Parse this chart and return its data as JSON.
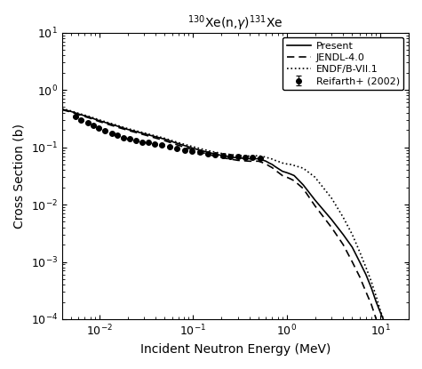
{
  "title": "$^{130}$Xe(n,$\\gamma$)$^{131}$Xe",
  "xlabel": "Incident Neutron Energy (MeV)",
  "ylabel": "Cross Section (b)",
  "xlim": [
    0.004,
    20
  ],
  "ylim": [
    0.0001,
    10
  ],
  "background_color": "#ffffff",
  "reifarth_x": [
    0.00553,
    0.00639,
    0.00756,
    0.00866,
    0.00988,
    0.01157,
    0.0136,
    0.0157,
    0.0182,
    0.0211,
    0.0246,
    0.0287,
    0.0337,
    0.0393,
    0.0468,
    0.0558,
    0.0673,
    0.0811,
    0.0983,
    0.1186,
    0.1426,
    0.1722,
    0.2076,
    0.2501,
    0.3009,
    0.3614,
    0.4338,
    0.5205
  ],
  "reifarth_y": [
    0.34,
    0.295,
    0.265,
    0.24,
    0.218,
    0.195,
    0.173,
    0.162,
    0.148,
    0.143,
    0.13,
    0.124,
    0.12,
    0.113,
    0.109,
    0.103,
    0.095,
    0.09,
    0.085,
    0.081,
    0.077,
    0.074,
    0.072,
    0.07,
    0.068,
    0.067,
    0.066,
    0.065
  ],
  "reifarth_yerr_low": [
    0.012,
    0.01,
    0.009,
    0.008,
    0.007,
    0.007,
    0.006,
    0.006,
    0.005,
    0.005,
    0.005,
    0.004,
    0.004,
    0.004,
    0.004,
    0.003,
    0.003,
    0.003,
    0.003,
    0.003,
    0.003,
    0.003,
    0.002,
    0.002,
    0.002,
    0.002,
    0.002,
    0.002
  ],
  "reifarth_yerr_high": [
    0.012,
    0.01,
    0.009,
    0.008,
    0.007,
    0.007,
    0.006,
    0.006,
    0.005,
    0.005,
    0.005,
    0.004,
    0.004,
    0.004,
    0.004,
    0.003,
    0.003,
    0.003,
    0.003,
    0.003,
    0.003,
    0.003,
    0.002,
    0.002,
    0.002,
    0.002,
    0.002,
    0.002
  ],
  "present_x": [
    0.004,
    0.005,
    0.006,
    0.008,
    0.01,
    0.015,
    0.02,
    0.03,
    0.05,
    0.07,
    0.1,
    0.15,
    0.2,
    0.3,
    0.4,
    0.5,
    0.55,
    0.6,
    0.65,
    0.7,
    0.75,
    0.8,
    0.9,
    1.0,
    1.1,
    1.2,
    1.3,
    1.5,
    2.0,
    3.0,
    4.0,
    5.0,
    6.0,
    7.0,
    8.0,
    9.0,
    10.0,
    12.0,
    15.0,
    20.0
  ],
  "present_y": [
    0.46,
    0.42,
    0.38,
    0.33,
    0.29,
    0.238,
    0.205,
    0.172,
    0.138,
    0.115,
    0.096,
    0.08,
    0.072,
    0.065,
    0.063,
    0.063,
    0.06,
    0.057,
    0.053,
    0.05,
    0.046,
    0.043,
    0.038,
    0.036,
    0.034,
    0.032,
    0.028,
    0.022,
    0.012,
    0.0055,
    0.003,
    0.0018,
    0.001,
    0.0006,
    0.00035,
    0.0002,
    0.00013,
    6.5e-05,
    3e-05,
    1.2e-05
  ],
  "jendl_x": [
    0.004,
    0.005,
    0.006,
    0.008,
    0.01,
    0.015,
    0.02,
    0.03,
    0.05,
    0.07,
    0.1,
    0.15,
    0.2,
    0.3,
    0.4,
    0.5,
    0.55,
    0.6,
    0.65,
    0.7,
    0.75,
    0.8,
    0.9,
    1.0,
    1.1,
    1.2,
    1.5,
    2.0,
    3.0,
    4.0,
    5.0,
    6.0,
    7.0,
    8.0,
    9.0,
    10.0,
    12.0,
    15.0,
    20.0
  ],
  "jendl_y": [
    0.45,
    0.41,
    0.37,
    0.32,
    0.28,
    0.228,
    0.198,
    0.165,
    0.13,
    0.108,
    0.09,
    0.074,
    0.066,
    0.059,
    0.057,
    0.057,
    0.054,
    0.051,
    0.047,
    0.044,
    0.04,
    0.037,
    0.032,
    0.03,
    0.028,
    0.026,
    0.019,
    0.0095,
    0.004,
    0.002,
    0.001,
    0.00055,
    0.0003,
    0.00018,
    0.0001,
    6e-05,
    2.8e-05,
    1.2e-05,
    4.5e-06
  ],
  "endf_x": [
    0.004,
    0.005,
    0.006,
    0.008,
    0.01,
    0.015,
    0.02,
    0.03,
    0.05,
    0.07,
    0.1,
    0.15,
    0.2,
    0.3,
    0.4,
    0.5,
    0.55,
    0.6,
    0.65,
    0.7,
    0.75,
    0.8,
    0.9,
    1.0,
    1.1,
    1.2,
    1.5,
    2.0,
    3.0,
    4.0,
    5.0,
    6.0,
    7.0,
    8.0,
    9.0,
    10.0,
    12.0,
    15.0,
    20.0
  ],
  "endf_y": [
    0.47,
    0.43,
    0.39,
    0.34,
    0.3,
    0.245,
    0.212,
    0.178,
    0.143,
    0.12,
    0.102,
    0.086,
    0.078,
    0.072,
    0.07,
    0.071,
    0.069,
    0.067,
    0.064,
    0.062,
    0.059,
    0.057,
    0.053,
    0.051,
    0.05,
    0.048,
    0.043,
    0.03,
    0.013,
    0.006,
    0.003,
    0.0015,
    0.0008,
    0.00045,
    0.00025,
    0.00014,
    6e-05,
    2.5e-05,
    8.5e-06
  ]
}
